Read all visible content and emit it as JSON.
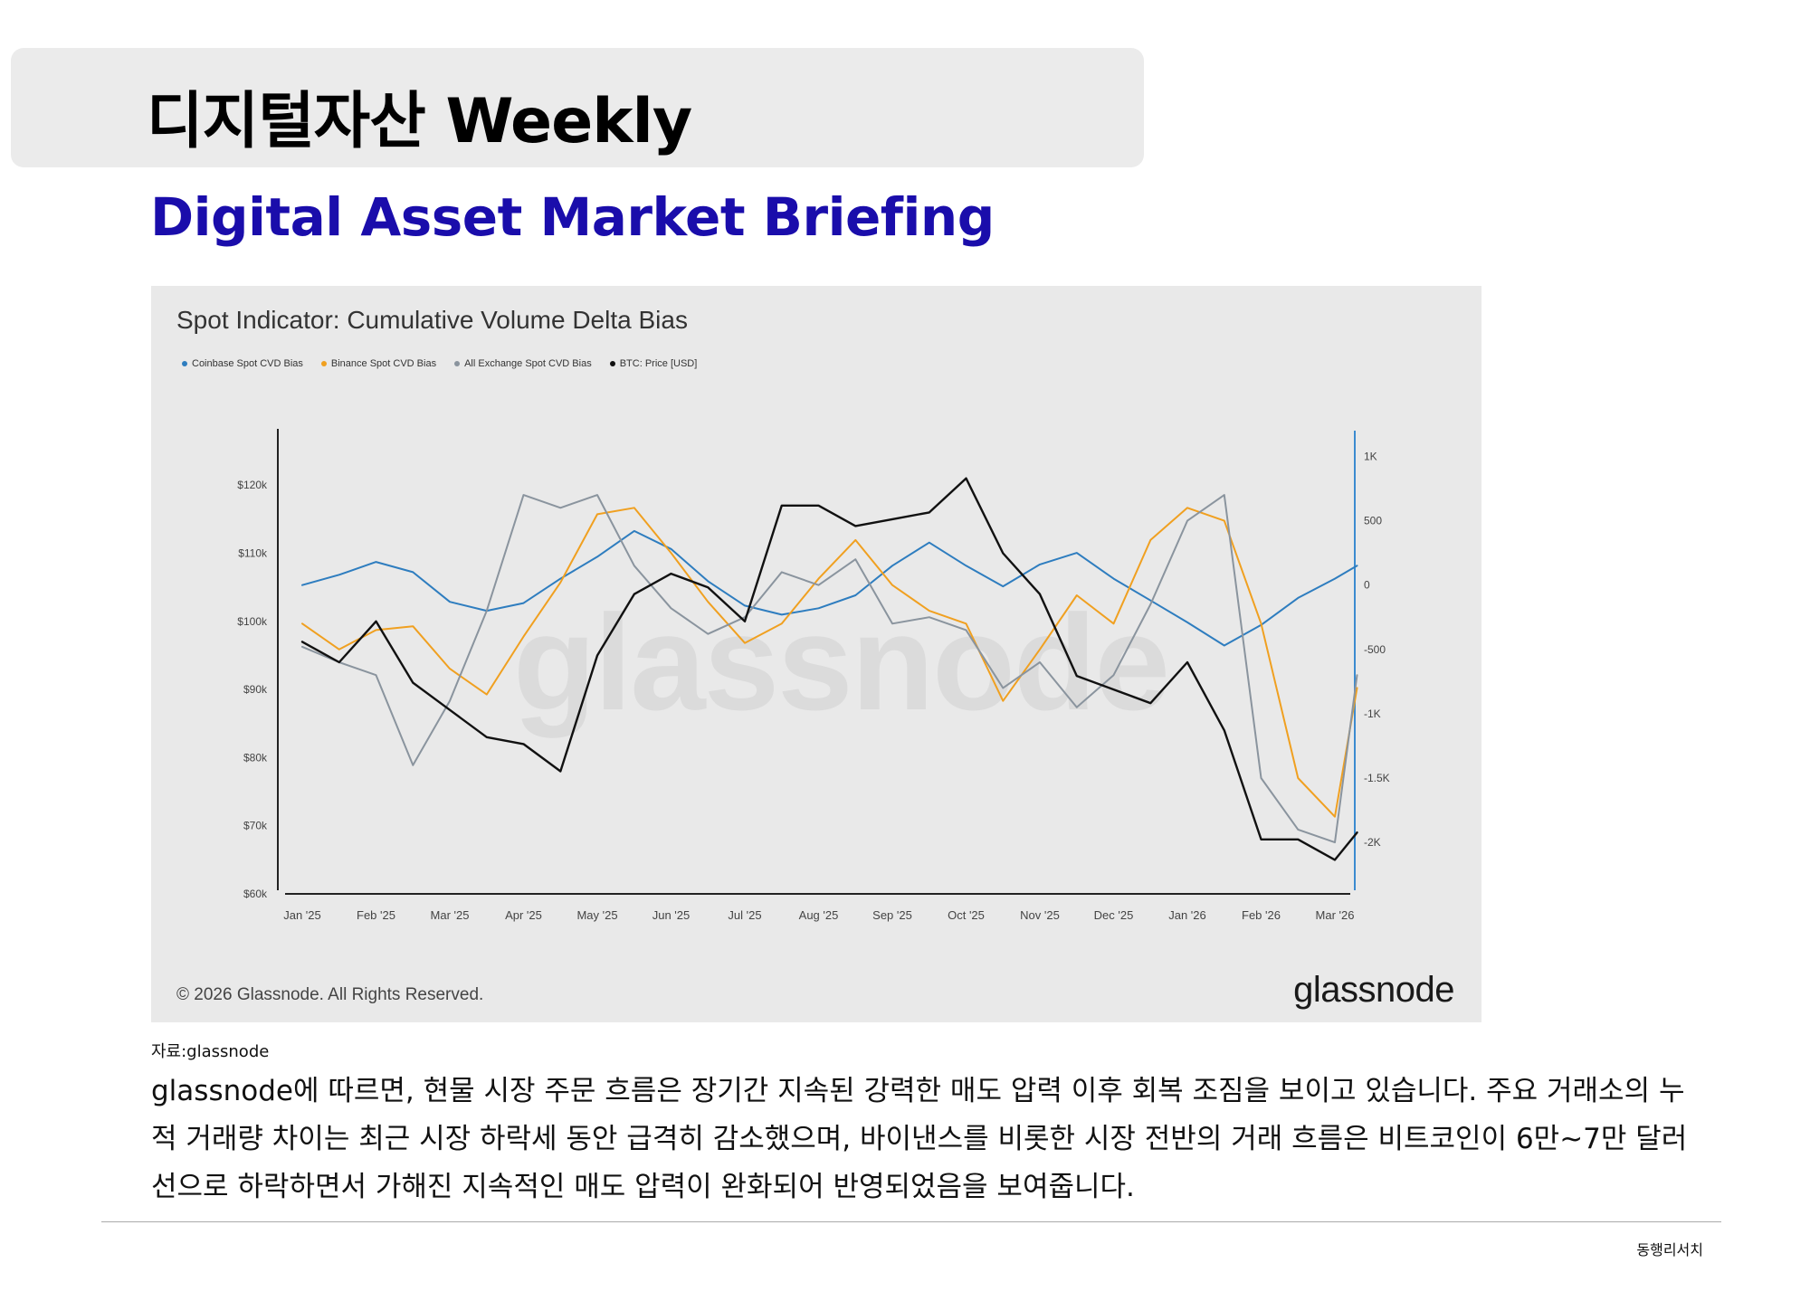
{
  "header": {
    "title": "디지털자산 Weekly",
    "subtitle": "Digital Asset Market Briefing"
  },
  "figure": {
    "copyright": "© 2026 Glassnode. All Rights Reserved.",
    "logo": "glassnode",
    "watermark": "glassnode"
  },
  "chart_data": {
    "type": "line",
    "title": "Spot Indicator: Cumulative Volume Delta Bias",
    "legend": [
      "Coinbase Spot CVD Bias",
      "Binance Spot CVD Bias",
      "All Exchange Spot CVD Bias",
      "BTC: Price [USD]"
    ],
    "legend_position": "top-left",
    "grid": false,
    "x_ticks": [
      "Jan '25",
      "Feb '25",
      "Mar '25",
      "Apr '25",
      "May '25",
      "Jun '25",
      "Jul '25",
      "Aug '25",
      "Sep '25",
      "Oct '25",
      "Nov '25",
      "Dec '25",
      "Jan '26",
      "Feb '26",
      "Mar '26"
    ],
    "y_left_ticks": [
      "$120k",
      "$110k",
      "$100k",
      "$90k",
      "$80k",
      "$70k",
      "$60k"
    ],
    "y_left_range": [
      60000,
      128000
    ],
    "y_right_ticks": [
      "1K",
      "500",
      "0",
      "-500",
      "-1K",
      "-1.5K",
      "-2K"
    ],
    "y_right_range": [
      -2400,
      1200
    ],
    "colors": {
      "coinbase": "#2e7dbf",
      "binance": "#f0a020",
      "all": "#8a949e",
      "btc": "#111111"
    },
    "series": [
      {
        "name": "Coinbase Spot CVD Bias",
        "axis": "right",
        "x": [
          0,
          0.5,
          1,
          1.5,
          2,
          2.5,
          3,
          3.5,
          4,
          4.5,
          5,
          5.5,
          6,
          6.5,
          7,
          7.5,
          8,
          8.5,
          9,
          9.5,
          10,
          10.5,
          11,
          11.5,
          12,
          12.5,
          13,
          13.5,
          14,
          14.3
        ],
        "values": [
          0,
          80,
          180,
          100,
          -130,
          -200,
          -140,
          50,
          220,
          420,
          280,
          30,
          -160,
          -230,
          -180,
          -80,
          150,
          330,
          150,
          -10,
          160,
          250,
          50,
          -120,
          -290,
          -470,
          -310,
          -100,
          50,
          150
        ],
        "color": "#2e7dbf"
      },
      {
        "name": "Binance Spot CVD Bias",
        "axis": "right",
        "x": [
          0,
          0.5,
          1,
          1.5,
          2,
          2.5,
          3,
          3.5,
          4,
          4.5,
          5,
          5.5,
          6,
          6.5,
          7,
          7.5,
          8,
          8.5,
          9,
          9.5,
          10,
          10.5,
          11,
          11.5,
          12,
          12.5,
          13,
          13.5,
          14,
          14.3
        ],
        "values": [
          -300,
          -500,
          -350,
          -320,
          -650,
          -850,
          -400,
          20,
          550,
          600,
          250,
          -130,
          -450,
          -300,
          50,
          350,
          0,
          -200,
          -300,
          -900,
          -500,
          -80,
          -300,
          350,
          600,
          500,
          -300,
          -1500,
          -1800,
          -800
        ],
        "color": "#f0a020"
      },
      {
        "name": "All Exchange Spot CVD Bias",
        "axis": "right",
        "x": [
          0,
          0.5,
          1,
          1.5,
          2,
          2.5,
          3,
          3.5,
          4,
          4.5,
          5,
          5.5,
          6,
          6.5,
          7,
          7.5,
          8,
          8.5,
          9,
          9.5,
          10,
          10.5,
          11,
          11.5,
          12,
          12.5,
          13,
          13.5,
          14,
          14.3
        ],
        "values": [
          -480,
          -600,
          -700,
          -1400,
          -900,
          -200,
          700,
          600,
          700,
          150,
          -180,
          -380,
          -250,
          100,
          0,
          200,
          -300,
          -250,
          -350,
          -800,
          -600,
          -950,
          -700,
          -150,
          500,
          700,
          -1500,
          -1900,
          -2000,
          -700
        ],
        "color": "#8a949e"
      },
      {
        "name": "BTC: Price [USD]",
        "axis": "left",
        "x": [
          0,
          0.5,
          1,
          1.5,
          2,
          2.5,
          3,
          3.5,
          4,
          4.5,
          5,
          5.5,
          6,
          6.5,
          7,
          7.5,
          8,
          8.5,
          9,
          9.5,
          10,
          10.5,
          11,
          11.5,
          12,
          12.5,
          13,
          13.5,
          14,
          14.3
        ],
        "values": [
          97000,
          94000,
          100000,
          91000,
          87000,
          83000,
          82000,
          78000,
          95000,
          104000,
          107000,
          105000,
          100000,
          117000,
          117000,
          114000,
          115000,
          116000,
          121000,
          110000,
          104000,
          92000,
          90000,
          88000,
          94000,
          84000,
          68000,
          68000,
          65000,
          69000
        ],
        "color": "#111111"
      }
    ]
  },
  "source_label": "자료:glassnode",
  "body_text": "glassnode에 따르면, 현물 시장 주문 흐름은 장기간 지속된 강력한 매도 압력 이후 회복 조짐을 보이고 있습니다. 주요 거래소의 누적 거래량 차이는 최근 시장 하락세 동안 급격히 감소했으며, 바이낸스를 비롯한 시장 전반의 거래 흐름은 비트코인이 6만~7만 달러 선으로 하락하면서 가해진 지속적인 매도 압력이 완화되어 반영되었음을 보여줍니다.",
  "footer": "동행리서치"
}
